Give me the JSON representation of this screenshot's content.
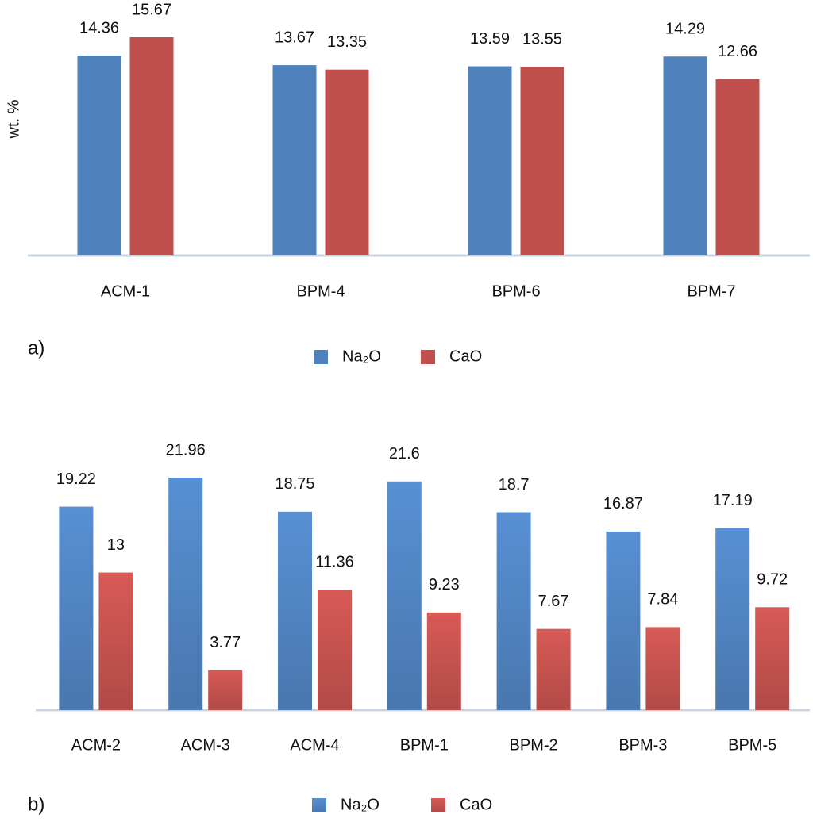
{
  "chart_data": [
    {
      "type": "bar",
      "panel_label": "a)",
      "y_label": "wt. %",
      "categories": [
        "ACM-1",
        "BPM-4",
        "BPM-6",
        "BPM-7"
      ],
      "series": [
        {
          "name": "Na₂O",
          "color": "#4f81bd",
          "values": [
            14.36,
            13.67,
            13.59,
            14.29
          ]
        },
        {
          "name": "CaO",
          "color": "#c0504d",
          "values": [
            15.67,
            13.35,
            13.55,
            12.66
          ]
        }
      ],
      "gradient": false
    },
    {
      "type": "bar",
      "panel_label": "b)",
      "categories": [
        "ACM-2",
        "ACM-3",
        "ACM-4",
        "BPM-1",
        "BPM-2",
        "BPM-3",
        "BPM-5"
      ],
      "series": [
        {
          "name": "Na₂O",
          "color": "#4f81bd",
          "values": [
            19.22,
            21.96,
            18.75,
            21.6,
            18.7,
            16.87,
            17.19
          ]
        },
        {
          "name": "CaO",
          "color": "#c0504d",
          "values": [
            13,
            3.77,
            11.36,
            9.23,
            7.67,
            7.84,
            9.72
          ]
        }
      ],
      "gradient": true
    }
  ]
}
